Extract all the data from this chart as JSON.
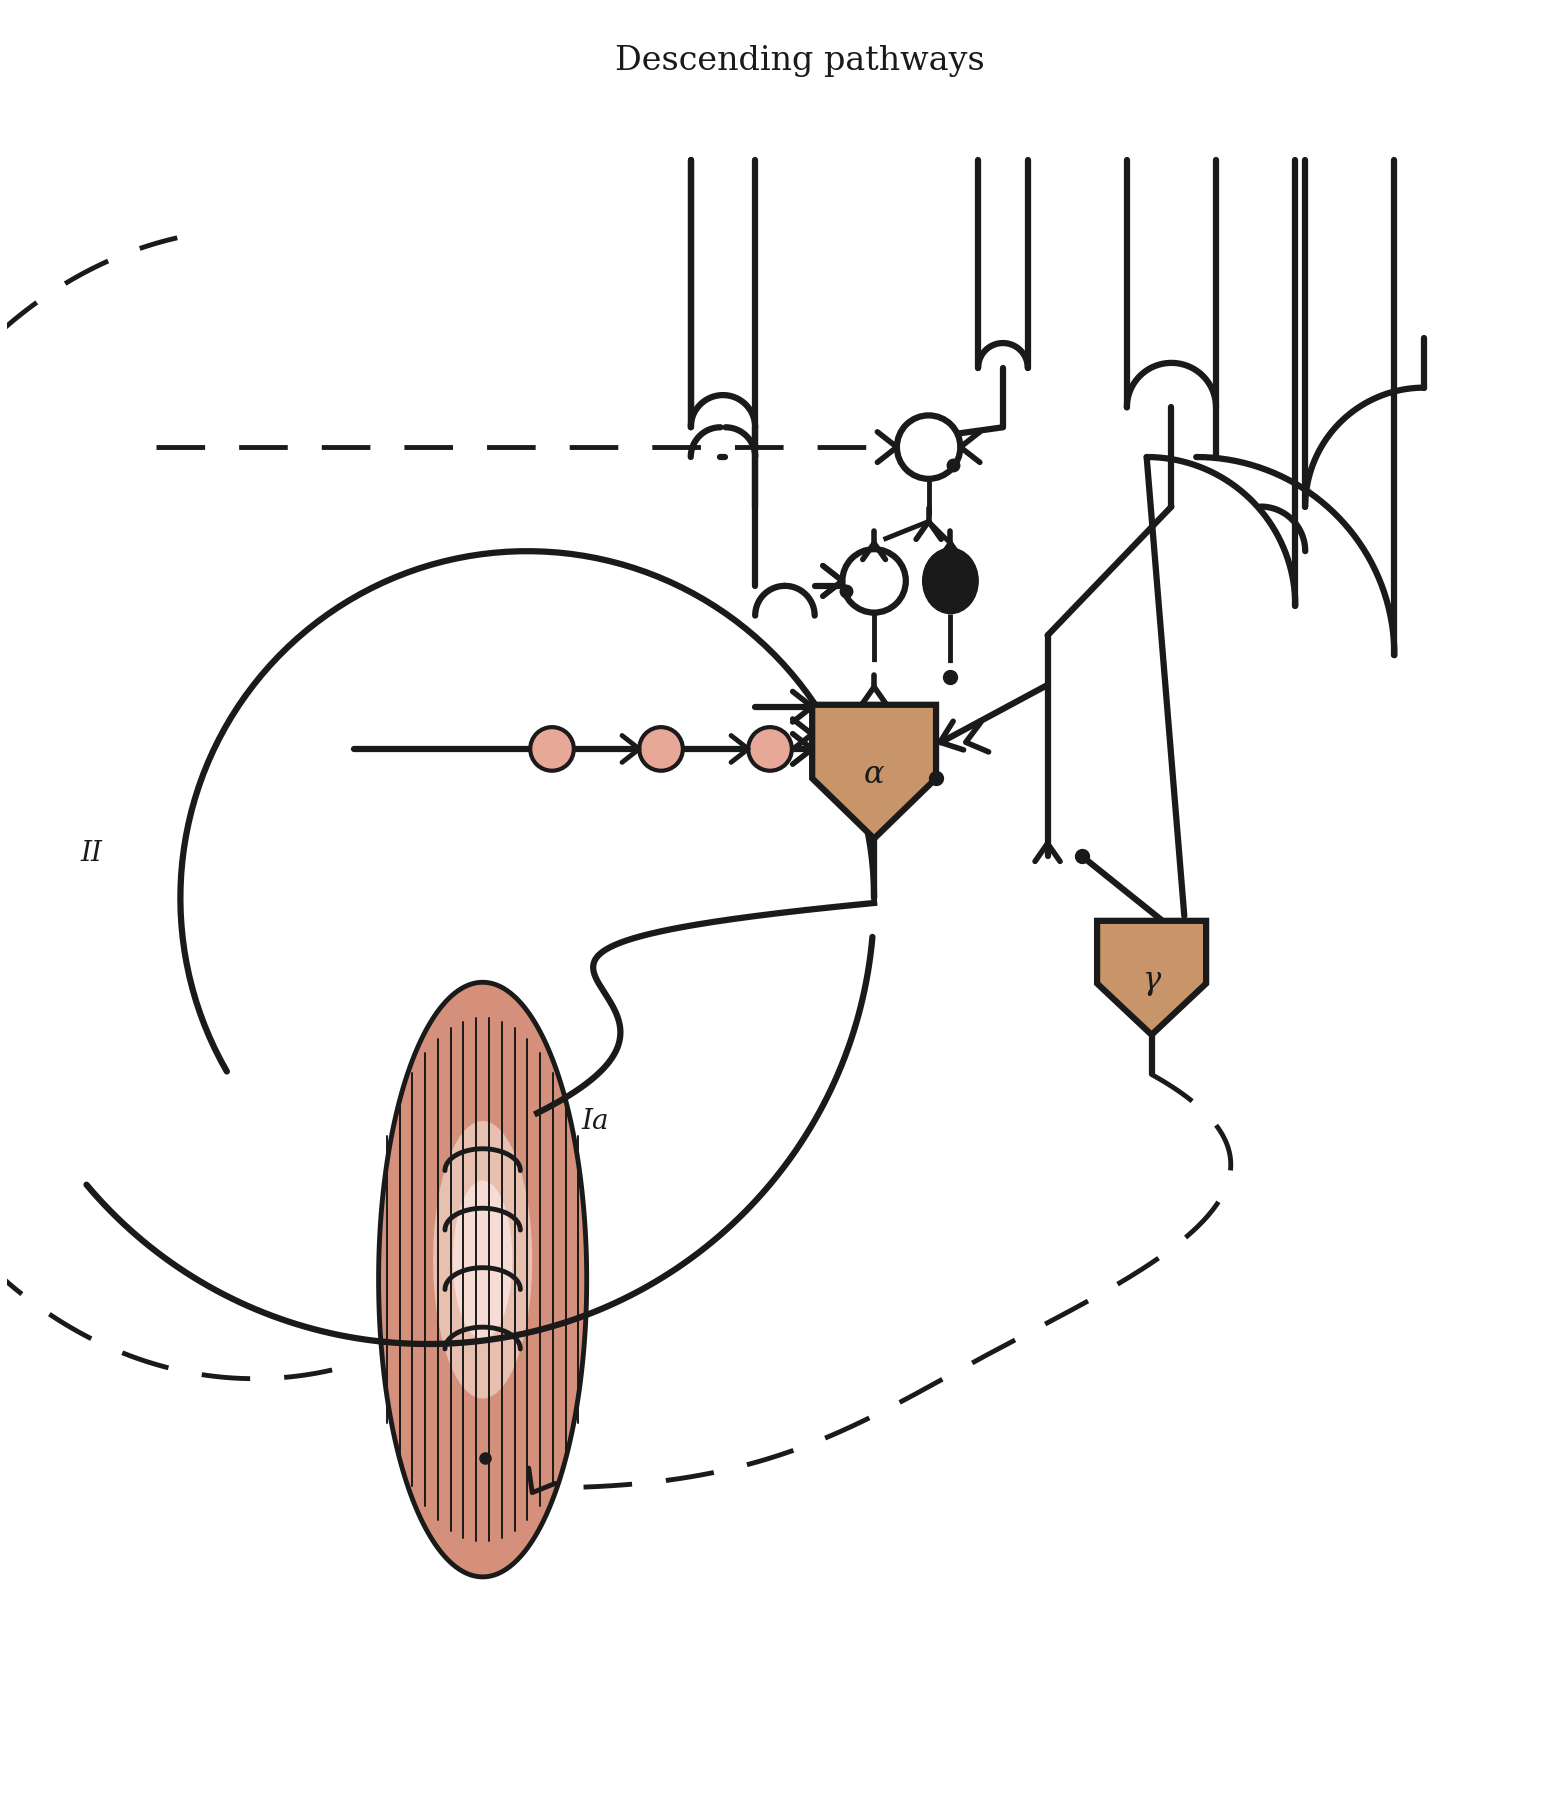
{
  "title": "Descending pathways",
  "title_fontsize": 24,
  "bg_color": "#ffffff",
  "line_color": "#1a1a1a",
  "lw": 3.0,
  "tlw": 4.5,
  "motoneuron_fill": "#c8956a",
  "alpha_label": "α",
  "gamma_label": "γ",
  "label_Ia": "Ia",
  "label_II": "II",
  "neuron_pink": "#e8a898",
  "spindle_outer": "#d4907a",
  "spindle_inner": "#e8c0b0",
  "spindle_lightest": "#f5ddd5"
}
